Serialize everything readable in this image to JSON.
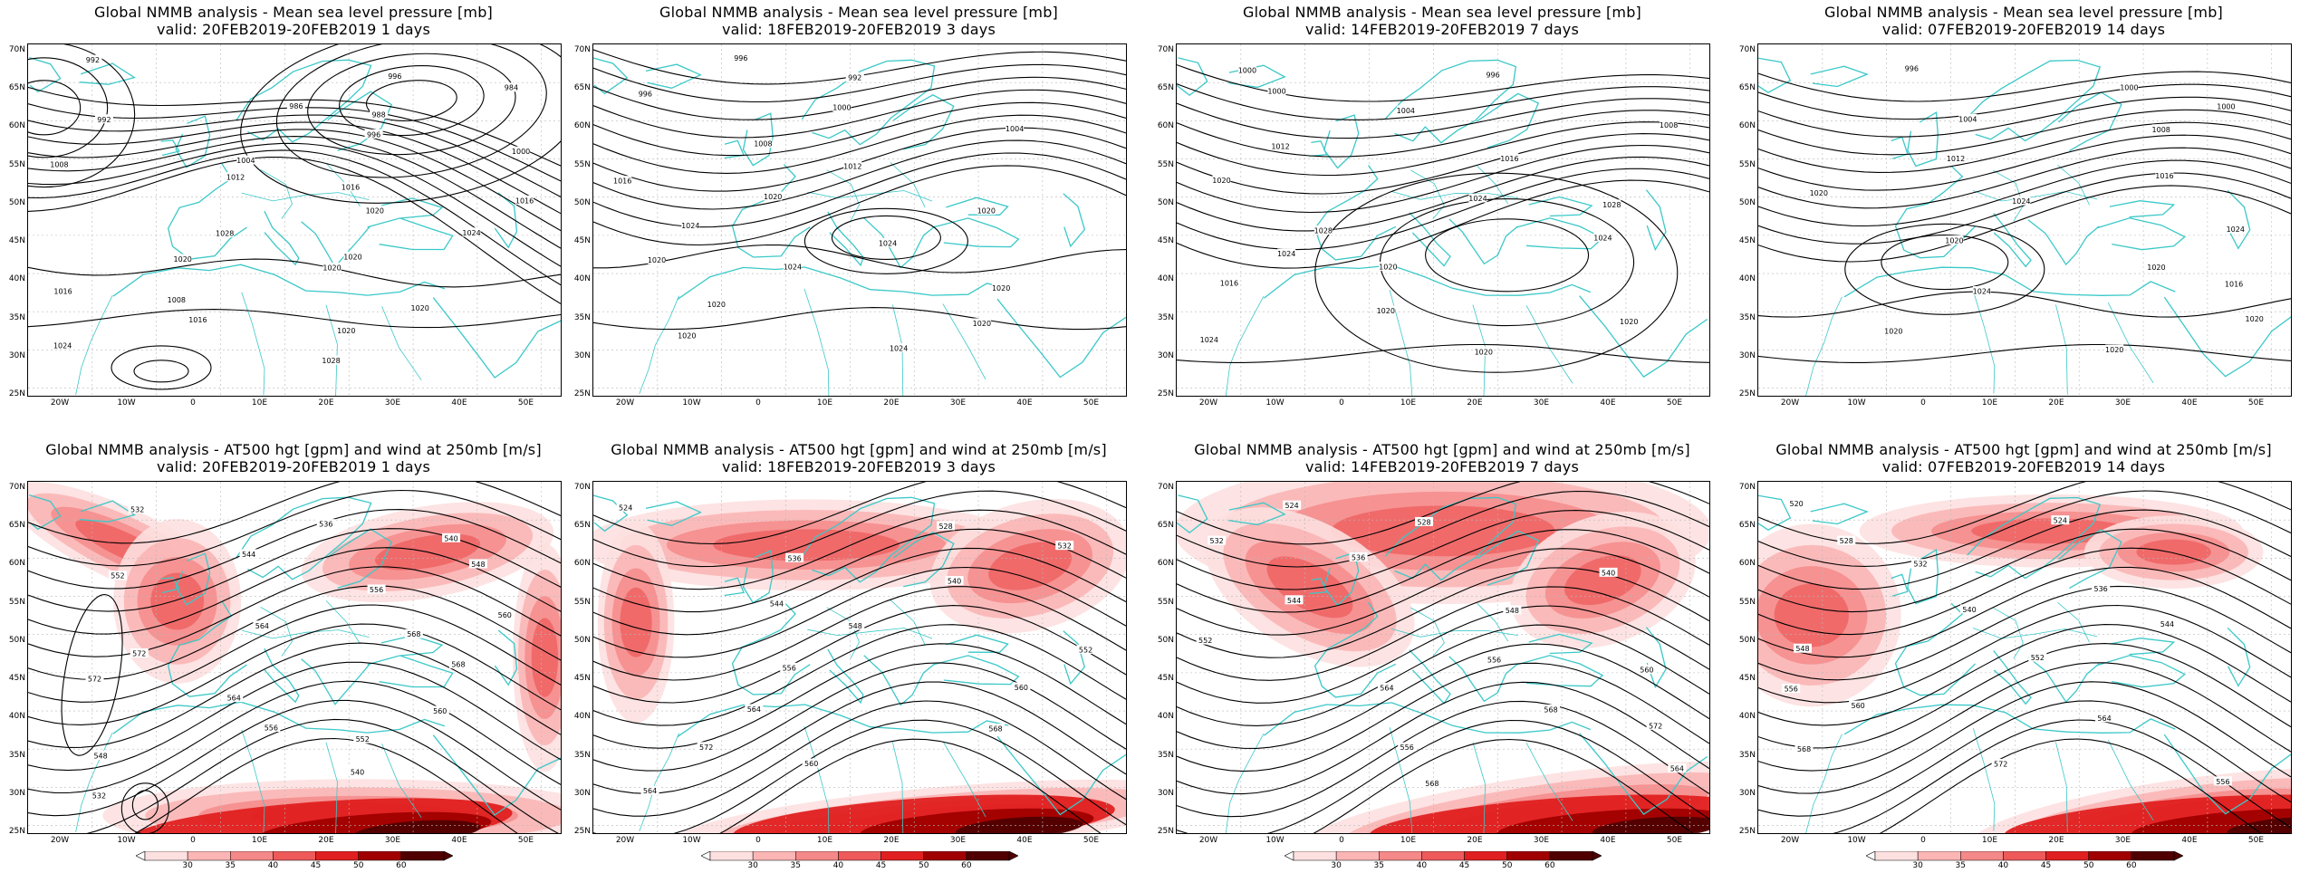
{
  "top_titles": [
    {
      "line1": "Global NMMB analysis - Mean sea level pressure [mb]",
      "line2": "valid: 20FEB2019-20FEB2019   1 days"
    },
    {
      "line1": "Global NMMB analysis - Mean sea level pressure [mb]",
      "line2": "valid: 18FEB2019-20FEB2019   3 days"
    },
    {
      "line1": "Global NMMB analysis - Mean sea level pressure [mb]",
      "line2": "valid: 14FEB2019-20FEB2019   7 days"
    },
    {
      "line1": "Global NMMB analysis - Mean sea level pressure [mb]",
      "line2": "valid: 07FEB2019-20FEB2019   14 days"
    }
  ],
  "bottom_titles": [
    {
      "line1": "Global NMMB analysis - AT500 hgt [gpm] and wind at 250mb [m/s]",
      "line2": "valid: 20FEB2019-20FEB2019   1 days"
    },
    {
      "line1": "Global NMMB analysis - AT500 hgt [gpm] and wind at 250mb [m/s]",
      "line2": "valid: 18FEB2019-20FEB2019   3 days"
    },
    {
      "line1": "Global NMMB analysis - AT500 hgt [gpm] and wind at 250mb [m/s]",
      "line2": "valid: 14FEB2019-20FEB2019   7 days"
    },
    {
      "line1": "Global NMMB analysis - AT500 hgt [gpm] and wind at 250mb [m/s]",
      "line2": "valid: 07FEB2019-20FEB2019   14 days"
    }
  ],
  "lat_labels": [
    "70N",
    "65N",
    "60N",
    "55N",
    "50N",
    "45N",
    "40N",
    "35N",
    "30N",
    "25N"
  ],
  "lon_labels": [
    "20W",
    "10W",
    "0",
    "10E",
    "20E",
    "30E",
    "40E",
    "50E"
  ],
  "colorbar_labels": [
    "30",
    "35",
    "40",
    "45",
    "50",
    "60"
  ],
  "colors": {
    "coast": "#3cc8c8",
    "contour": "#000000",
    "wind_levels": [
      "#fde0e0",
      "#fbb5b5",
      "#f58888",
      "#ee5a5a",
      "#e02020",
      "#a00000",
      "#500000"
    ]
  },
  "mslp_labels": [
    [
      "992",
      "996",
      "984",
      "986",
      "988",
      "992",
      "996",
      "1000",
      "1004",
      "1008",
      "1012",
      "1016",
      "1016",
      "1020",
      "1024",
      "1028",
      "1020",
      "1020",
      "1020",
      "1016",
      "1008",
      "1020",
      "1016",
      "1020",
      "1024",
      "1028"
    ],
    [
      "996",
      "992",
      "996",
      "1000",
      "1004",
      "1008",
      "1012",
      "1016",
      "1020",
      "1020",
      "1024",
      "1024",
      "1020",
      "1024",
      "1020",
      "1020",
      "1020",
      "1020",
      "1024"
    ],
    [
      "1000",
      "996",
      "1000",
      "1004",
      "1008",
      "1012",
      "1016",
      "1020",
      "1024",
      "1028",
      "1028",
      "1024",
      "1024",
      "1020",
      "1016",
      "1020",
      "1020",
      "1024",
      "1020"
    ],
    [
      "996",
      "1000",
      "1000",
      "1004",
      "1008",
      "1012",
      "1016",
      "1020",
      "1024",
      "1024",
      "1020",
      "1020",
      "1016",
      "1024",
      "1020",
      "1020",
      "1020"
    ]
  ],
  "z500_labels": [
    [
      "532",
      "536",
      "540",
      "544",
      "548",
      "552",
      "556",
      "560",
      "564",
      "568",
      "572",
      "568",
      "572",
      "564",
      "560",
      "556",
      "552",
      "548",
      "540",
      "532"
    ],
    [
      "524",
      "528",
      "532",
      "536",
      "540",
      "544",
      "548",
      "552",
      "556",
      "560",
      "564",
      "568",
      "572",
      "560",
      "564"
    ],
    [
      "524",
      "528",
      "532",
      "536",
      "540",
      "544",
      "548",
      "552",
      "556",
      "560",
      "564",
      "568",
      "572",
      "556",
      "564",
      "568"
    ],
    [
      "520",
      "524",
      "528",
      "532",
      "536",
      "540",
      "544",
      "548",
      "552",
      "556",
      "560",
      "564",
      "568",
      "572",
      "556"
    ]
  ]
}
